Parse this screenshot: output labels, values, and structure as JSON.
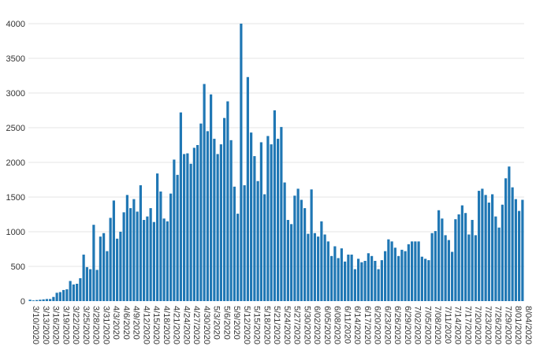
{
  "chart_data": {
    "type": "bar",
    "title": "",
    "xlabel": "",
    "ylabel": "",
    "ylim": [
      0,
      4000
    ],
    "yticks": [
      0,
      500,
      1000,
      1500,
      2000,
      2500,
      3000,
      3500,
      4000
    ],
    "grid": true,
    "legend": "none",
    "bar_color": "#1f77b4",
    "x_tick_labels": [
      "3/10/2020",
      "3/13/2020",
      "3/16/2020",
      "3/19/2020",
      "3/22/2020",
      "3/25/2020",
      "3/28/2020",
      "3/31/2020",
      "4/3/2020",
      "4/6/2020",
      "4/9/2020",
      "4/12/2020",
      "4/15/2020",
      "4/18/2020",
      "4/21/2020",
      "4/24/2020",
      "4/27/2020",
      "4/30/2020",
      "5/3/2020",
      "5/6/2020",
      "5/9/2020",
      "5/12/2020",
      "5/15/2020",
      "5/18/2020",
      "5/21/2020",
      "5/24/2020",
      "5/27/2020",
      "5/30/2020",
      "6/02/2020",
      "6/05/2020",
      "6/08/2020",
      "6/11/2020",
      "6/14/2020",
      "6/17/2020",
      "6/20/2020",
      "6/23/2020",
      "6/26/2020",
      "6/29/2020",
      "7/02/2020",
      "7/05/2020",
      "7/08/2020",
      "7/11/2020",
      "7/14/2020",
      "7/17/2020",
      "7/20/2020",
      "7/23/2020",
      "7/26/2020",
      "7/29/2020",
      "8/01/2020",
      "8/04/2020"
    ],
    "x_start": "2020-03-10",
    "x_end": "2020-08-04",
    "values": [
      20,
      10,
      15,
      20,
      25,
      30,
      30,
      60,
      120,
      130,
      160,
      170,
      290,
      240,
      250,
      330,
      670,
      490,
      460,
      1100,
      450,
      930,
      980,
      720,
      1200,
      1450,
      900,
      1000,
      1280,
      1530,
      1340,
      1470,
      1290,
      1670,
      1170,
      1220,
      1340,
      1140,
      1840,
      1580,
      1190,
      1150,
      1550,
      2040,
      1820,
      2720,
      2120,
      2130,
      1980,
      2210,
      2250,
      2560,
      3130,
      2450,
      2980,
      2340,
      2120,
      2260,
      2640,
      2880,
      2320,
      1650,
      1260,
      4000,
      1670,
      3230,
      2430,
      2090,
      1730,
      2290,
      1540,
      2380,
      2260,
      2750,
      2340,
      2510,
      1710,
      1170,
      1110,
      1520,
      1620,
      1460,
      1340,
      970,
      1610,
      980,
      930,
      1150,
      960,
      860,
      650,
      790,
      620,
      760,
      570,
      670,
      670,
      460,
      610,
      560,
      580,
      690,
      650,
      580,
      460,
      590,
      720,
      890,
      860,
      770,
      650,
      740,
      720,
      820,
      860,
      860,
      860,
      640,
      610,
      590,
      980,
      1010,
      1310,
      1190,
      950,
      880,
      710,
      1180,
      1250,
      1380,
      1270,
      960,
      1170,
      950,
      1590,
      1620,
      1530,
      1420,
      1540,
      1220,
      1060,
      1390,
      1770,
      1940,
      1640,
      1470,
      1300,
      1460
    ]
  }
}
